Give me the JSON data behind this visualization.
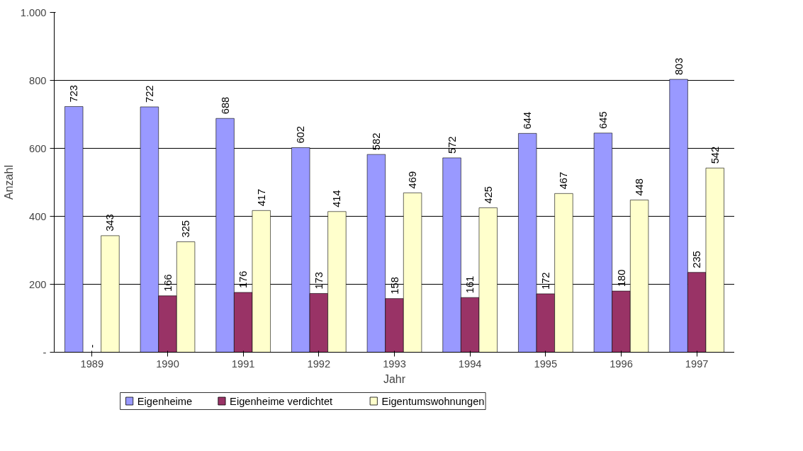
{
  "chart_data": {
    "type": "bar",
    "xlabel": "Jahr",
    "ylabel": "Anzahl",
    "categories": [
      "1989",
      "1990",
      "1991",
      "1992",
      "1993",
      "1994",
      "1995",
      "1996",
      "1997"
    ],
    "series": [
      {
        "name": "Eigenheime",
        "color": "#9999ff",
        "values": [
          723,
          722,
          688,
          602,
          582,
          572,
          644,
          645,
          803
        ],
        "value_labels": [
          "723",
          "722",
          "688",
          "602",
          "582",
          "572",
          "644",
          "645",
          "803"
        ]
      },
      {
        "name": "Eigenheime verdichtet",
        "color": "#993366",
        "values": [
          null,
          166,
          176,
          173,
          158,
          161,
          172,
          180,
          235
        ],
        "value_labels": [
          "-",
          "166",
          "176",
          "173",
          "158",
          "161",
          "172",
          "180",
          "235"
        ]
      },
      {
        "name": "Eigentumswohnungen",
        "color": "#ffffcc",
        "values": [
          343,
          325,
          417,
          414,
          469,
          425,
          467,
          448,
          542
        ],
        "value_labels": [
          "343",
          "325",
          "417",
          "414",
          "469",
          "425",
          "467",
          "448",
          "542"
        ]
      }
    ],
    "ylim": [
      0,
      1000
    ],
    "yticks": [
      {
        "value": 0,
        "label": "-"
      },
      200,
      400,
      600,
      800,
      {
        "value": 1000,
        "label": "1.000"
      }
    ],
    "grid": "y",
    "legend": "bottom"
  }
}
